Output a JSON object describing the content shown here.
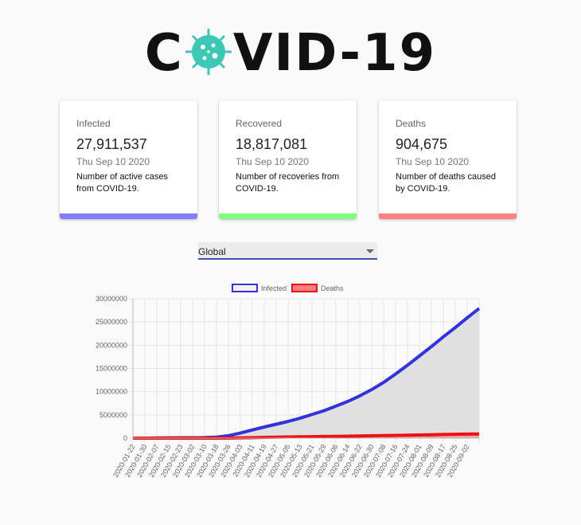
{
  "header": {
    "title_start": "C",
    "title_end": "VID-19"
  },
  "cards": [
    {
      "label": "Infected",
      "value": "27,911,537",
      "date": "Thu Sep 10 2020",
      "text": "Number of active cases from COVID-19.",
      "color": "#8080ff"
    },
    {
      "label": "Recovered",
      "value": "18,817,081",
      "date": "Thu Sep 10 2020",
      "text": "Number of recoveries from COVID-19.",
      "color": "#80ff80"
    },
    {
      "label": "Deaths",
      "value": "904,675",
      "date": "Thu Sep 10 2020",
      "text": "Number of deaths caused by COVID-19.",
      "color": "#ff8080"
    }
  ],
  "select": {
    "value": "Global"
  },
  "chart_data": {
    "type": "line",
    "categories": [
      "2020-01-22",
      "2020-01-30",
      "2020-02-07",
      "2020-02-15",
      "2020-02-23",
      "2020-03-02",
      "2020-03-10",
      "2020-03-18",
      "2020-03-26",
      "2020-04-03",
      "2020-04-11",
      "2020-04-19",
      "2020-04-27",
      "2020-05-05",
      "2020-05-13",
      "2020-05-21",
      "2020-05-29",
      "2020-06-06",
      "2020-06-14",
      "2020-06-22",
      "2020-06-30",
      "2020-07-08",
      "2020-07-16",
      "2020-07-24",
      "2020-08-01",
      "2020-08-09",
      "2020-08-17",
      "2020-08-25",
      "2020-09-02",
      null
    ],
    "series": [
      {
        "name": "Infected",
        "color": "#3333dd",
        "fill": "#e0e0e0",
        "values": [
          555,
          9800,
          34000,
          69000,
          79000,
          90000,
          119000,
          215000,
          530000,
          1100000,
          1770000,
          2400000,
          3000000,
          3600000,
          4300000,
          5100000,
          5900000,
          6900000,
          7900000,
          9100000,
          10450000,
          12000000,
          13800000,
          15700000,
          17700000,
          19700000,
          21800000,
          23800000,
          25900000,
          27911537
        ]
      },
      {
        "name": "Deaths",
        "color": "#ee1111",
        "fill": "#f08080",
        "values": [
          17,
          213,
          720,
          1700,
          2600,
          3100,
          4300,
          9000,
          27000,
          68000,
          114000,
          165000,
          211000,
          258000,
          297000,
          330000,
          365000,
          396000,
          432000,
          474000,
          514000,
          551000,
          592000,
          634000,
          684000,
          734000,
          786000,
          831000,
          870000,
          904675
        ]
      }
    ],
    "ylim": [
      0,
      30000000
    ],
    "yticks": [
      0,
      5000000,
      10000000,
      15000000,
      20000000,
      25000000,
      30000000
    ],
    "grid": true
  }
}
